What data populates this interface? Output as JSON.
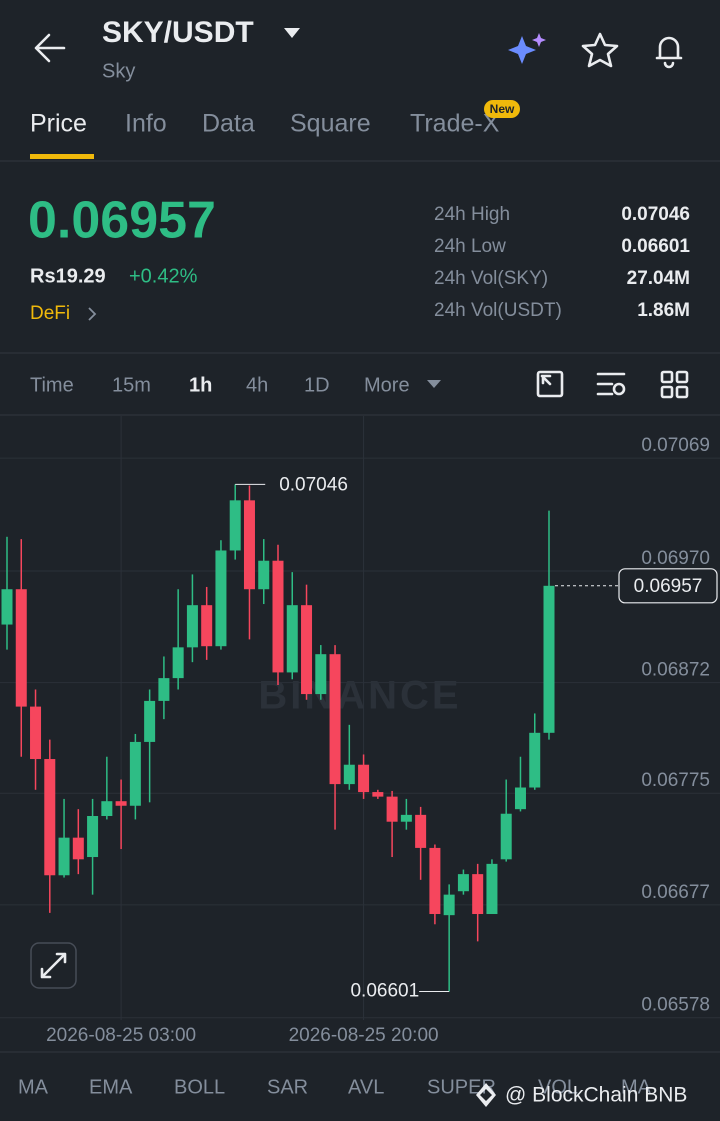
{
  "header": {
    "title": "SKY/USDT",
    "subtitle": "Sky"
  },
  "tabs": {
    "items": [
      "Price",
      "Info",
      "Data",
      "Square",
      "Trade-X"
    ],
    "active": "Price",
    "badge": "New"
  },
  "price": {
    "last": "0.06957",
    "local": "Rs19.29",
    "change": "+0.42%",
    "sector": "DeFi"
  },
  "stats": {
    "rows": [
      [
        "24h High",
        "0.07046"
      ],
      [
        "24h Low",
        "0.06601"
      ],
      [
        "24h Vol(SKY)",
        "27.04M"
      ],
      [
        "24h Vol(USDT)",
        "1.86M"
      ]
    ]
  },
  "intervals": {
    "items": [
      "Time",
      "15m",
      "1h",
      "4h",
      "1D",
      "More"
    ],
    "active": "1h"
  },
  "chart_data": {
    "type": "candlestick",
    "watermark": "BINANCE",
    "categories": [
      null,
      null,
      null,
      null,
      null,
      null,
      null,
      null,
      "2026-08-25 03:00",
      null,
      null,
      null,
      null,
      null,
      null,
      null,
      null,
      null,
      null,
      null,
      null,
      null,
      null,
      null,
      null,
      "2026-08-25 20:00",
      null,
      null,
      null,
      null,
      null,
      null,
      null,
      null,
      null,
      null,
      null,
      null,
      null
    ],
    "open": [
      0.06923,
      0.06954,
      0.06851,
      0.06805,
      0.06703,
      0.06736,
      0.06719,
      0.06755,
      0.06768,
      0.06764,
      0.0682,
      0.06856,
      0.06876,
      0.06903,
      0.0694,
      0.06904,
      0.06988,
      0.07032,
      0.06954,
      0.06979,
      0.06881,
      0.0694,
      0.06862,
      0.06897,
      0.06783,
      0.068,
      0.06776,
      0.06772,
      0.0675,
      0.06756,
      0.06727,
      0.06668,
      0.06689,
      0.06704,
      0.06669,
      0.06717,
      0.06761,
      0.0678,
      0.06828
    ],
    "high": [
      0.07,
      0.06998,
      0.06866,
      0.06822,
      0.0677,
      0.06761,
      0.0677,
      0.06807,
      0.06787,
      0.06827,
      0.06866,
      0.06895,
      0.06954,
      0.06967,
      0.06956,
      0.06997,
      0.07046,
      0.07045,
      0.06998,
      0.06993,
      0.06969,
      0.06958,
      0.06905,
      0.06905,
      0.06835,
      0.06809,
      0.06778,
      0.06777,
      0.0677,
      0.06763,
      0.0673,
      0.06695,
      0.06708,
      0.06713,
      0.06717,
      0.06787,
      0.06807,
      0.06845,
      0.07023
    ],
    "low": [
      0.06901,
      0.06807,
      0.06778,
      0.0667,
      0.06701,
      0.06704,
      0.06686,
      0.06752,
      0.06726,
      0.06752,
      0.06767,
      0.0684,
      0.06866,
      0.0689,
      0.06892,
      0.06901,
      0.0698,
      0.0691,
      0.06941,
      0.0687,
      0.06875,
      0.06857,
      0.06857,
      0.06743,
      0.06778,
      0.0677,
      0.0677,
      0.06719,
      0.06743,
      0.06699,
      0.0666,
      0.06601,
      0.06686,
      0.06645,
      0.06669,
      0.06715,
      0.06759,
      0.06778,
      0.06822
    ],
    "close": [
      0.06954,
      0.06851,
      0.06805,
      0.06703,
      0.06736,
      0.06717,
      0.06755,
      0.06768,
      0.06764,
      0.0682,
      0.06856,
      0.06876,
      0.06903,
      0.0694,
      0.06904,
      0.06988,
      0.07032,
      0.06954,
      0.06979,
      0.06881,
      0.0694,
      0.06862,
      0.06897,
      0.06783,
      0.068,
      0.06776,
      0.06772,
      0.0675,
      0.06756,
      0.06727,
      0.06669,
      0.06686,
      0.06704,
      0.06669,
      0.06713,
      0.06757,
      0.0678,
      0.06828,
      0.06957
    ],
    "up_color": "#2ebd85",
    "down_color": "#f6465d",
    "ylim": [
      0.06576,
      0.07106
    ],
    "yticks": [
      0.07069,
      {
        "value": 0.0697,
        "label": "0.06970"
      },
      0.06872,
      0.06775,
      0.06677,
      0.06578
    ],
    "grid": true,
    "annotations": {
      "high": "0.07046",
      "low": "0.06601",
      "last": "0.06957"
    }
  },
  "indicators": {
    "items": [
      "MA",
      "EMA",
      "BOLL",
      "SAR",
      "AVL",
      "SUPER",
      "VOL",
      "MA"
    ]
  },
  "overlay": {
    "text": "@ BlockChain BNB"
  }
}
